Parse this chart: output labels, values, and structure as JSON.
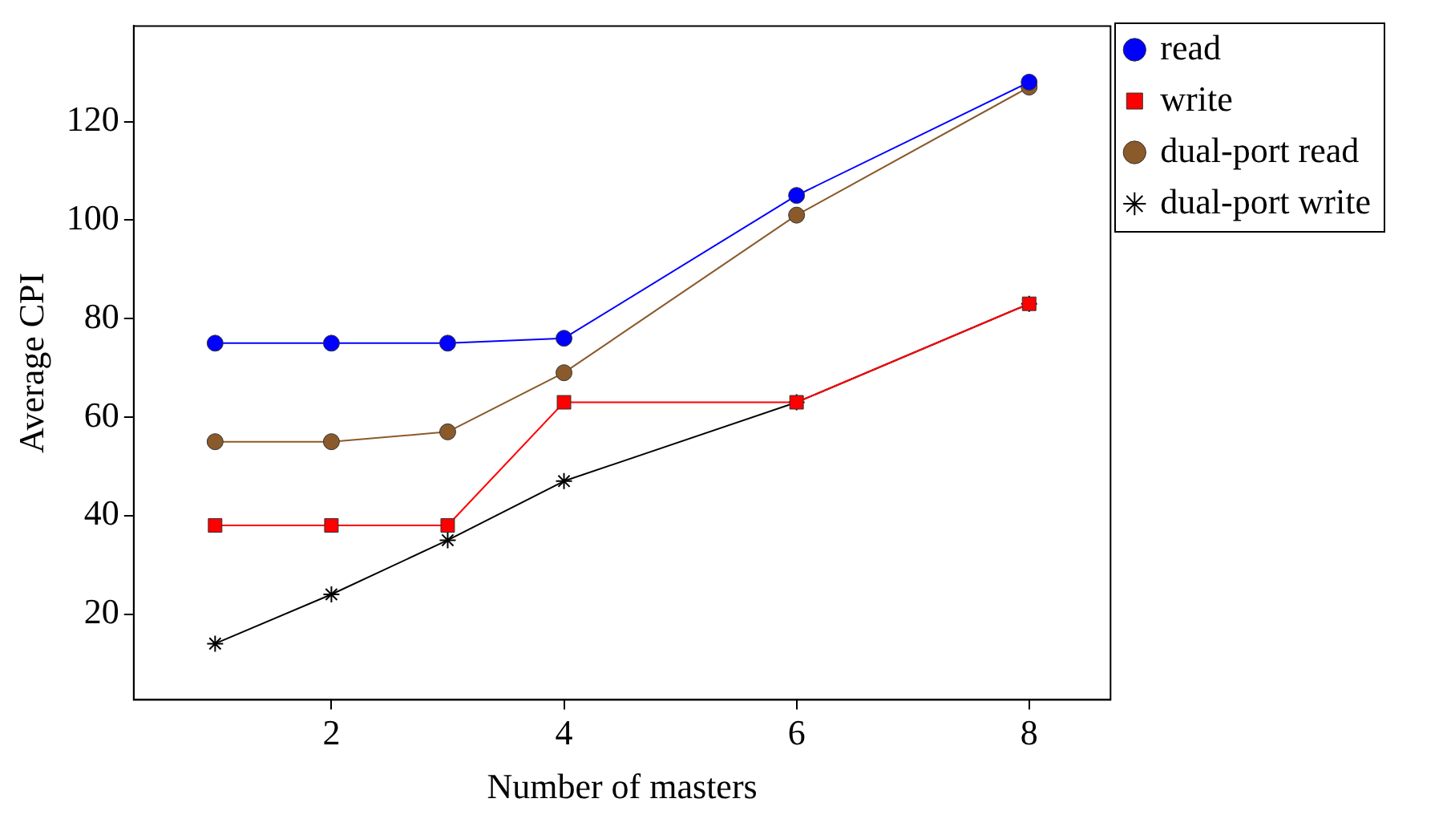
{
  "chart_data": {
    "type": "line",
    "xlabel": "Number of masters",
    "ylabel": "Average CPI",
    "x": [
      1,
      2,
      3,
      4,
      6,
      8
    ],
    "xlim": [
      0.3,
      8.7
    ],
    "xticks": [
      2,
      4,
      6,
      8
    ],
    "ylim": [
      2.6,
      139.4
    ],
    "yticks": [
      20,
      40,
      60,
      80,
      100,
      120
    ],
    "grid": false,
    "legend": "top right",
    "line_style": "solid",
    "series": [
      {
        "name": "read",
        "color": "#0000ff",
        "marker": "circle",
        "values": [
          75,
          75,
          75,
          76,
          105,
          128
        ]
      },
      {
        "name": "write",
        "color": "#ff0000",
        "marker": "square",
        "values": [
          38,
          38,
          38,
          63,
          63,
          83
        ]
      },
      {
        "name": "dual-port read",
        "color": "#8b5a2b",
        "marker": "circle",
        "values": [
          55,
          55,
          57,
          69,
          101,
          127
        ]
      },
      {
        "name": "dual-port write",
        "color": "#000000",
        "marker": "cross",
        "values": [
          14,
          24,
          35,
          47,
          63,
          83
        ]
      }
    ]
  }
}
